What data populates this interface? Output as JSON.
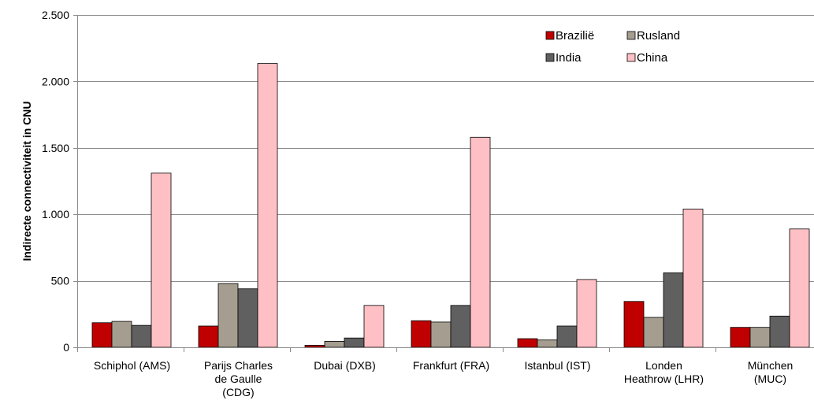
{
  "chart_data": {
    "type": "bar",
    "ylabel": "Indirecte connectiviteit in CNU",
    "ylim": [
      0,
      2500
    ],
    "yticks": [
      0,
      500,
      1000,
      1500,
      2000,
      2500
    ],
    "ytick_labels": [
      "0",
      "500",
      "1.000",
      "1.500",
      "2.000",
      "2.500"
    ],
    "grid": true,
    "legend_position": "top-right",
    "categories": [
      [
        "Schiphol (AMS)"
      ],
      [
        "Parijs Charles",
        "de Gaulle",
        "(CDG)"
      ],
      [
        "Dubai (DXB)"
      ],
      [
        "Frankfurt (FRA)"
      ],
      [
        "Istanbul (IST)"
      ],
      [
        "Londen",
        "Heathrow (LHR)"
      ],
      [
        "München",
        "(MUC)"
      ]
    ],
    "series": [
      {
        "name": "Brazilië",
        "color": "#c00000",
        "values": [
          185,
          160,
          15,
          200,
          65,
          345,
          150
        ]
      },
      {
        "name": "Rusland",
        "color": "#a59d8f",
        "values": [
          195,
          480,
          45,
          190,
          55,
          225,
          150
        ]
      },
      {
        "name": "India",
        "color": "#606060",
        "values": [
          165,
          440,
          70,
          315,
          160,
          560,
          235
        ]
      },
      {
        "name": "China",
        "color": "#ffc0c5",
        "values": [
          1310,
          2135,
          315,
          1580,
          510,
          1040,
          890
        ]
      }
    ]
  }
}
